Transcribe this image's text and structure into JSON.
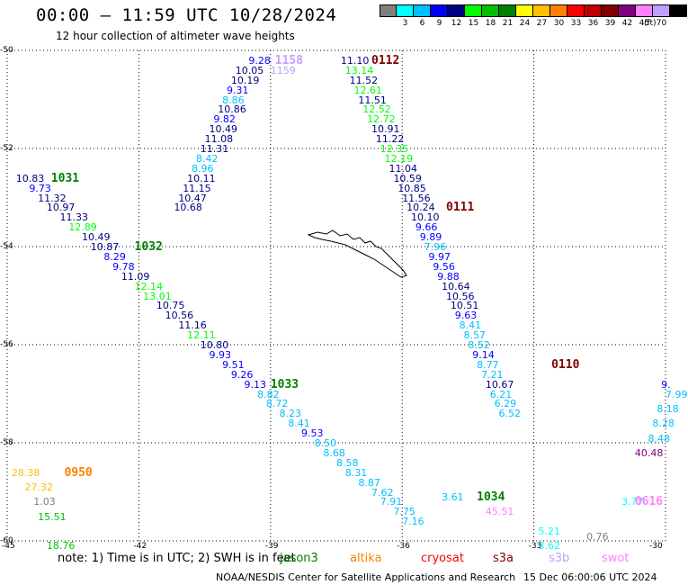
{
  "header": {
    "title": "00:00 – 11:59 UTC 10/28/2024",
    "subtitle": "12 hour collection of altimeter wave heights"
  },
  "legend": {
    "unit": "(ft)",
    "scale": [
      {
        "label": "",
        "color": "#808080"
      },
      {
        "label": "3",
        "color": "#00ffff"
      },
      {
        "label": "6",
        "color": "#00bfff"
      },
      {
        "label": "9",
        "color": "#0000ff"
      },
      {
        "label": "12",
        "color": "#000080"
      },
      {
        "label": "15",
        "color": "#00ff00"
      },
      {
        "label": "18",
        "color": "#00c000"
      },
      {
        "label": "21",
        "color": "#008000"
      },
      {
        "label": "24",
        "color": "#ffff00"
      },
      {
        "label": "27",
        "color": "#ffc000"
      },
      {
        "label": "30",
        "color": "#ff8000"
      },
      {
        "label": "33",
        "color": "#ff0000"
      },
      {
        "label": "36",
        "color": "#c00000"
      },
      {
        "label": "39",
        "color": "#800000"
      },
      {
        "label": "42",
        "color": "#800080"
      },
      {
        "label": "45",
        "color": "#ff80ff"
      },
      {
        "label": "70",
        "color": "#c0a0ff"
      },
      {
        "label": "",
        "color": "#000000"
      }
    ]
  },
  "map": {
    "lon_min": -45,
    "lon_max": -30,
    "lat_min": -60,
    "lat_max": -50,
    "lon_ticks": [
      "-45",
      "-42",
      "-39",
      "-36",
      "-33",
      "-30"
    ],
    "lat_ticks": [
      "-50",
      "-52",
      "-54",
      "-56",
      "-58",
      "-60"
    ],
    "tracks": [
      {
        "hour": "1031",
        "hour_color": "#008000",
        "points": [
          {
            "lon": -44.8,
            "lat": -52.6,
            "v": "10.83",
            "c": "#000080"
          },
          {
            "lon": -44.5,
            "lat": -52.8,
            "v": "9.73",
            "c": "#0000ff"
          },
          {
            "lon": -44.3,
            "lat": -53.0,
            "v": "11.32",
            "c": "#000080"
          },
          {
            "lon": -44.1,
            "lat": -53.2,
            "v": "10.97",
            "c": "#000080"
          },
          {
            "lon": -43.8,
            "lat": -53.4,
            "v": "11.33",
            "c": "#000080"
          },
          {
            "lon": -43.6,
            "lat": -53.6,
            "v": "12.89",
            "c": "#00ff00"
          },
          {
            "lon": -43.3,
            "lat": -53.8,
            "v": "10.49",
            "c": "#000080"
          },
          {
            "lon": -43.1,
            "lat": -54.0,
            "v": "10.87",
            "c": "#000080"
          },
          {
            "lon": -42.8,
            "lat": -54.2,
            "v": "8.29",
            "c": "#0000ff"
          },
          {
            "lon": -42.6,
            "lat": -54.4,
            "v": "9.78",
            "c": "#0000ff"
          },
          {
            "lon": -42.4,
            "lat": -54.6,
            "v": "11.09",
            "c": "#000080"
          },
          {
            "lon": -42.1,
            "lat": -54.8,
            "v": "12.14",
            "c": "#00ff00"
          },
          {
            "lon": -41.9,
            "lat": -55.0,
            "v": "13.01",
            "c": "#00ff00"
          },
          {
            "lon": -41.6,
            "lat": -55.2,
            "v": "10.75",
            "c": "#000080"
          },
          {
            "lon": -41.4,
            "lat": -55.4,
            "v": "10.56",
            "c": "#000080"
          },
          {
            "lon": -41.1,
            "lat": -55.6,
            "v": "11.16",
            "c": "#000080"
          },
          {
            "lon": -40.9,
            "lat": -55.8,
            "v": "12.11",
            "c": "#00ff00"
          },
          {
            "lon": -40.6,
            "lat": -56.0,
            "v": "10.80",
            "c": "#000080"
          },
          {
            "lon": -40.4,
            "lat": -56.2,
            "v": "9.93",
            "c": "#0000ff"
          },
          {
            "lon": -40.1,
            "lat": -56.4,
            "v": "9.51",
            "c": "#0000ff"
          },
          {
            "lon": -39.9,
            "lat": -56.6,
            "v": "9.26",
            "c": "#0000ff"
          },
          {
            "lon": -39.6,
            "lat": -56.8,
            "v": "9.13",
            "c": "#0000ff"
          },
          {
            "lon": -39.3,
            "lat": -57.0,
            "v": "8.82",
            "c": "#00bfff"
          },
          {
            "lon": -39.1,
            "lat": -57.2,
            "v": "8.72",
            "c": "#00bfff"
          },
          {
            "lon": -38.8,
            "lat": -57.4,
            "v": "8.23",
            "c": "#00bfff"
          },
          {
            "lon": -38.6,
            "lat": -57.6,
            "v": "8.41",
            "c": "#00bfff"
          },
          {
            "lon": -38.3,
            "lat": -57.8,
            "v": "9.53",
            "c": "#0000ff"
          },
          {
            "lon": -38.0,
            "lat": -58.0,
            "v": "8.50",
            "c": "#00bfff"
          },
          {
            "lon": -37.8,
            "lat": -58.2,
            "v": "8.68",
            "c": "#00bfff"
          },
          {
            "lon": -37.5,
            "lat": -58.4,
            "v": "8.58",
            "c": "#00bfff"
          },
          {
            "lon": -37.3,
            "lat": -58.6,
            "v": "8.31",
            "c": "#00bfff"
          },
          {
            "lon": -37.0,
            "lat": -58.8,
            "v": "8.87",
            "c": "#00bfff"
          },
          {
            "lon": -36.7,
            "lat": -59.0,
            "v": "7.62",
            "c": "#00bfff"
          },
          {
            "lon": -36.5,
            "lat": -59.2,
            "v": "7.91",
            "c": "#00bfff"
          },
          {
            "lon": -36.2,
            "lat": -59.4,
            "v": "7.75",
            "c": "#00bfff"
          },
          {
            "lon": -36.0,
            "lat": -59.6,
            "v": "7.16",
            "c": "#00bfff"
          }
        ]
      },
      {
        "hour": "1032",
        "hour_color": "#008000",
        "points": []
      },
      {
        "hour": "1033",
        "hour_color": "#008000",
        "points": []
      },
      {
        "hour": "1034",
        "hour_color": "#008000",
        "points": [
          {
            "lon": -35.1,
            "lat": -59.1,
            "v": "3.61",
            "c": "#00bfff"
          }
        ]
      },
      {
        "hour": "1158",
        "hour_color": "#c0a0ff",
        "points": [
          {
            "lon": -39.0,
            "lat": -50.4,
            "v": "1159",
            "c": "#c0a0ff"
          },
          {
            "lon": -39.5,
            "lat": -50.2,
            "v": "9.28",
            "c": "#0000ff"
          },
          {
            "lon": -39.8,
            "lat": -50.4,
            "v": "10.05",
            "c": "#000080"
          },
          {
            "lon": -39.9,
            "lat": -50.6,
            "v": "10.19",
            "c": "#000080"
          },
          {
            "lon": -40.0,
            "lat": -50.8,
            "v": "9.31",
            "c": "#0000ff"
          },
          {
            "lon": -40.1,
            "lat": -51.0,
            "v": "8.86",
            "c": "#00bfff"
          },
          {
            "lon": -40.2,
            "lat": -51.2,
            "v": "10.86",
            "c": "#000080"
          },
          {
            "lon": -40.3,
            "lat": -51.4,
            "v": "9.82",
            "c": "#0000ff"
          },
          {
            "lon": -40.4,
            "lat": -51.6,
            "v": "10.49",
            "c": "#000080"
          },
          {
            "lon": -40.5,
            "lat": -51.8,
            "v": "11.08",
            "c": "#000080"
          },
          {
            "lon": -40.6,
            "lat": -52.0,
            "v": "11.31",
            "c": "#000080"
          },
          {
            "lon": -40.7,
            "lat": -52.2,
            "v": "8.42",
            "c": "#00bfff"
          },
          {
            "lon": -40.8,
            "lat": -52.4,
            "v": "8.96",
            "c": "#00bfff"
          },
          {
            "lon": -40.9,
            "lat": -52.6,
            "v": "10.11",
            "c": "#000080"
          },
          {
            "lon": -41.0,
            "lat": -52.8,
            "v": "11.15",
            "c": "#000080"
          },
          {
            "lon": -41.1,
            "lat": -53.0,
            "v": "10.47",
            "c": "#000080"
          },
          {
            "lon": -41.2,
            "lat": -53.2,
            "v": "10.68",
            "c": "#000080"
          }
        ]
      },
      {
        "hour": "0112",
        "hour_color": "#800000",
        "points": [
          {
            "lon": -37.4,
            "lat": -50.2,
            "v": "11.10",
            "c": "#000080"
          },
          {
            "lon": -37.3,
            "lat": -50.4,
            "v": "13.14",
            "c": "#00ff00"
          },
          {
            "lon": -37.2,
            "lat": -50.6,
            "v": "11.52",
            "c": "#000080"
          },
          {
            "lon": -37.1,
            "lat": -50.8,
            "v": "12.61",
            "c": "#00ff00"
          },
          {
            "lon": -37.0,
            "lat": -51.0,
            "v": "11.51",
            "c": "#000080"
          },
          {
            "lon": -36.9,
            "lat": -51.2,
            "v": "12.52",
            "c": "#00ff00"
          },
          {
            "lon": -36.8,
            "lat": -51.4,
            "v": "12.72",
            "c": "#00ff00"
          },
          {
            "lon": -36.7,
            "lat": -51.6,
            "v": "10.91",
            "c": "#000080"
          },
          {
            "lon": -36.6,
            "lat": -51.8,
            "v": "11.22",
            "c": "#000080"
          },
          {
            "lon": -36.5,
            "lat": -52.0,
            "v": "12.35",
            "c": "#00ff00"
          },
          {
            "lon": -36.4,
            "lat": -52.2,
            "v": "12.19",
            "c": "#00ff00"
          },
          {
            "lon": -36.3,
            "lat": -52.4,
            "v": "11.04",
            "c": "#000080"
          },
          {
            "lon": -36.2,
            "lat": -52.6,
            "v": "10.59",
            "c": "#000080"
          },
          {
            "lon": -36.1,
            "lat": -52.8,
            "v": "10.85",
            "c": "#000080"
          },
          {
            "lon": -36.0,
            "lat": -53.0,
            "v": "11.56",
            "c": "#000080"
          }
        ]
      },
      {
        "hour": "0111",
        "hour_color": "#800000",
        "points": [
          {
            "lon": -35.9,
            "lat": -53.2,
            "v": "10.24",
            "c": "#000080"
          },
          {
            "lon": -35.8,
            "lat": -53.4,
            "v": "10.10",
            "c": "#000080"
          },
          {
            "lon": -35.7,
            "lat": -53.6,
            "v": "9.66",
            "c": "#0000ff"
          },
          {
            "lon": -35.6,
            "lat": -53.8,
            "v": "9.89",
            "c": "#0000ff"
          },
          {
            "lon": -35.5,
            "lat": -54.0,
            "v": "7.96",
            "c": "#00bfff"
          },
          {
            "lon": -35.4,
            "lat": -54.2,
            "v": "9.97",
            "c": "#0000ff"
          },
          {
            "lon": -35.3,
            "lat": -54.4,
            "v": "9.56",
            "c": "#0000ff"
          },
          {
            "lon": -35.2,
            "lat": -54.6,
            "v": "9.88",
            "c": "#0000ff"
          },
          {
            "lon": -35.1,
            "lat": -54.8,
            "v": "10.64",
            "c": "#000080"
          },
          {
            "lon": -35.0,
            "lat": -55.0,
            "v": "10.56",
            "c": "#000080"
          },
          {
            "lon": -34.9,
            "lat": -55.2,
            "v": "10.51",
            "c": "#000080"
          },
          {
            "lon": -34.8,
            "lat": -55.4,
            "v": "9.63",
            "c": "#0000ff"
          }
        ]
      },
      {
        "hour": "0110",
        "hour_color": "#800000",
        "points": [
          {
            "lon": -34.7,
            "lat": -55.6,
            "v": "8.41",
            "c": "#00bfff"
          },
          {
            "lon": -34.6,
            "lat": -55.8,
            "v": "8.57",
            "c": "#00bfff"
          },
          {
            "lon": -34.5,
            "lat": -56.0,
            "v": "8.52",
            "c": "#00bfff"
          },
          {
            "lon": -34.4,
            "lat": -56.2,
            "v": "9.14",
            "c": "#0000ff"
          },
          {
            "lon": -34.3,
            "lat": -56.4,
            "v": "8.77",
            "c": "#00bfff"
          },
          {
            "lon": -34.2,
            "lat": -56.6,
            "v": "7.21",
            "c": "#00bfff"
          },
          {
            "lon": -34.1,
            "lat": -56.8,
            "v": "10.67",
            "c": "#000080"
          },
          {
            "lon": -34.0,
            "lat": -57.0,
            "v": "6.21",
            "c": "#00bfff"
          },
          {
            "lon": -33.9,
            "lat": -57.2,
            "v": "6.29",
            "c": "#00bfff"
          },
          {
            "lon": -33.8,
            "lat": -57.4,
            "v": "6.52",
            "c": "#00bfff"
          }
        ]
      },
      {
        "hour": "0950",
        "hour_color": "#ff8000",
        "points": [
          {
            "lon": -44.9,
            "lat": -58.6,
            "v": "28.38",
            "c": "#ffc000"
          },
          {
            "lon": -44.6,
            "lat": -58.9,
            "v": "27.32",
            "c": "#ffc000"
          },
          {
            "lon": -44.4,
            "lat": -59.2,
            "v": "1.03",
            "c": "#808080"
          },
          {
            "lon": -44.3,
            "lat": -59.5,
            "v": "15.51",
            "c": "#00c000"
          },
          {
            "lon": -44.1,
            "lat": -60.1,
            "v": "18.76",
            "c": "#00c000"
          }
        ]
      },
      {
        "hour": "0616",
        "hour_color": "#ff80ff",
        "points": [
          {
            "lon": -30.1,
            "lat": -56.8,
            "v": "9.",
            "c": "#0000ff"
          },
          {
            "lon": -30.0,
            "lat": -57.0,
            "v": "7.99",
            "c": "#00bfff"
          },
          {
            "lon": -30.2,
            "lat": -57.3,
            "v": "8.18",
            "c": "#00bfff"
          },
          {
            "lon": -30.3,
            "lat": -57.6,
            "v": "8.28",
            "c": "#00bfff"
          },
          {
            "lon": -30.4,
            "lat": -57.9,
            "v": "8.48",
            "c": "#00bfff"
          },
          {
            "lon": -30.7,
            "lat": -58.2,
            "v": "40.48",
            "c": "#800080"
          },
          {
            "lon": -31.0,
            "lat": -59.2,
            "v": "3.77",
            "c": "#00ffff"
          }
        ]
      },
      {
        "hour": "",
        "hour_color": "#ff80ff",
        "points": [
          {
            "lon": -34.1,
            "lat": -59.4,
            "v": "45.51",
            "c": "#ff80ff"
          },
          {
            "lon": -32.9,
            "lat": -59.8,
            "v": "5.21",
            "c": "#00ffff"
          },
          {
            "lon": -32.9,
            "lat": -60.1,
            "v": "3.62",
            "c": "#00ffff"
          },
          {
            "lon": -31.8,
            "lat": -59.9,
            "v": "0.76",
            "c": "#808080"
          }
        ]
      }
    ]
  },
  "footer": {
    "note": "note:  1) Time is in UTC; 2) SWH is in feet",
    "satellites": [
      {
        "name": "jason3",
        "color": "#008000"
      },
      {
        "name": "altika",
        "color": "#ff8000"
      },
      {
        "name": "cryosat",
        "color": "#ff0000"
      },
      {
        "name": "s3a",
        "color": "#800000"
      },
      {
        "name": "s3b",
        "color": "#c0a0ff"
      },
      {
        "name": "swot",
        "color": "#ff80ff"
      }
    ],
    "credit": "NOAA/NESDIS Center for Satellite Applications and Research",
    "timestamp": "15 Dec 06:00:06 UTC 2024"
  }
}
